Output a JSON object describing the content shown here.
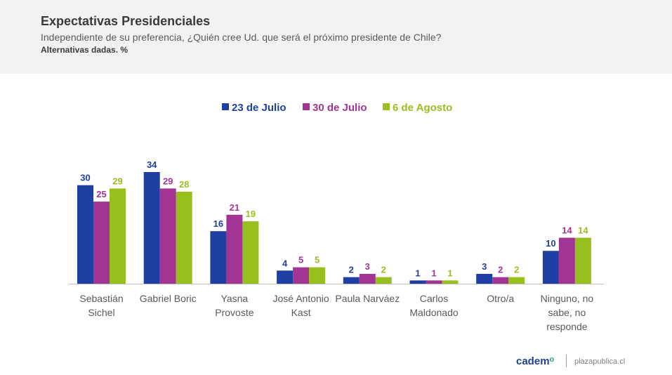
{
  "header": {
    "title": "Expectativas Presidenciales",
    "subtitle": "Independiente de su preferencia, ¿Quién cree Ud. que será el próximo presidente de Chile?",
    "note": "Alternativas dadas. %"
  },
  "footer": {
    "logo": "cadem",
    "site": "plazapublica.cl"
  },
  "chart_data": {
    "type": "bar",
    "title": "",
    "xlabel": "",
    "ylabel": "",
    "ylim": [
      0,
      34
    ],
    "grid": false,
    "legend_position": "top",
    "categories": [
      [
        "Sebastián",
        "Sichel"
      ],
      [
        "Gabriel Boric"
      ],
      [
        "Yasna",
        "Provoste"
      ],
      [
        "José Antonio",
        "Kast"
      ],
      [
        "Paula Narváez"
      ],
      [
        "Carlos",
        "Maldonado"
      ],
      [
        "Otro/a"
      ],
      [
        "Ninguno, no",
        "sabe, no",
        "responde"
      ]
    ],
    "series": [
      {
        "name": "23 de Julio",
        "color": "#1f3fa3",
        "values": [
          30,
          34,
          16,
          4,
          2,
          1,
          3,
          10
        ]
      },
      {
        "name": "30 de Julio",
        "color": "#a23593",
        "values": [
          25,
          29,
          21,
          5,
          3,
          1,
          2,
          14
        ]
      },
      {
        "name": "6 de Agosto",
        "color": "#97bf1e",
        "values": [
          29,
          28,
          19,
          5,
          2,
          1,
          2,
          14
        ]
      }
    ]
  }
}
